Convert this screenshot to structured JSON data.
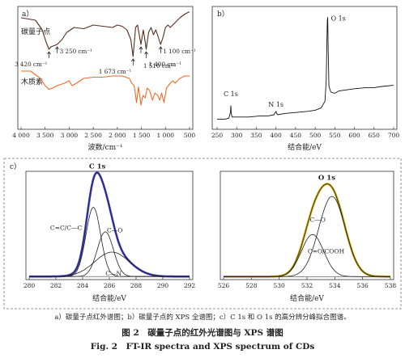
{
  "chart_data": [
    {
      "type": "line",
      "panel_label": "a）",
      "xlabel": "波数/cm⁻¹",
      "x_ticks": [
        4000,
        3500,
        3000,
        2500,
        2000,
        1500,
        1000,
        500
      ],
      "xlim": [
        4000,
        500
      ],
      "series": [
        {
          "name": "碳量子点",
          "color": "#5a2d1c",
          "x": [
            4000,
            3700,
            3560,
            3480,
            3420,
            3380,
            3250,
            3150,
            3050,
            2900,
            2700,
            2500,
            2300,
            2100,
            2000,
            1900,
            1800,
            1720,
            1673,
            1620,
            1580,
            1510,
            1460,
            1420,
            1400,
            1350,
            1300,
            1250,
            1200,
            1150,
            1100,
            1050,
            1000,
            950,
            900,
            850,
            800,
            700,
            600,
            500
          ],
          "y": [
            0.92,
            0.9,
            0.82,
            0.72,
            0.66,
            0.68,
            0.7,
            0.74,
            0.8,
            0.84,
            0.83,
            0.86,
            0.85,
            0.84,
            0.86,
            0.85,
            0.82,
            0.74,
            0.6,
            0.84,
            0.86,
            0.7,
            0.82,
            0.72,
            0.66,
            0.8,
            0.84,
            0.78,
            0.82,
            0.76,
            0.7,
            0.76,
            0.84,
            0.86,
            0.84,
            0.86,
            0.88,
            0.92,
            0.95,
            0.97
          ]
        },
        {
          "name": "木质素",
          "color": "#ef6a2a",
          "x": [
            4000,
            3800,
            3600,
            3500,
            3420,
            3350,
            3250,
            3100,
            3000,
            2940,
            2850,
            2700,
            2500,
            2300,
            2100,
            1900,
            1750,
            1700,
            1650,
            1600,
            1560,
            1510,
            1470,
            1420,
            1380,
            1330,
            1270,
            1220,
            1160,
            1120,
            1080,
            1030,
            980,
            900,
            850,
            800,
            700,
            600,
            500
          ],
          "y": [
            0.48,
            0.48,
            0.42,
            0.36,
            0.33,
            0.34,
            0.36,
            0.38,
            0.4,
            0.36,
            0.38,
            0.42,
            0.43,
            0.43,
            0.44,
            0.44,
            0.42,
            0.38,
            0.36,
            0.22,
            0.35,
            0.2,
            0.28,
            0.26,
            0.34,
            0.32,
            0.24,
            0.3,
            0.28,
            0.24,
            0.3,
            0.22,
            0.34,
            0.38,
            0.4,
            0.38,
            0.42,
            0.44,
            0.44
          ]
        }
      ],
      "annotations": [
        {
          "text": "3 420 cm⁻¹",
          "x": 3420
        },
        {
          "text": "3 250 cm⁻¹",
          "x": 3250
        },
        {
          "text": "1 673 cm⁻¹",
          "x": 1673
        },
        {
          "text": "1 510 cm⁻¹",
          "x": 1510
        },
        {
          "text": "1 400 cm⁻¹",
          "x": 1400
        },
        {
          "text": "1 100 cm⁻¹",
          "x": 1100
        }
      ]
    },
    {
      "type": "line",
      "panel_label": "b）",
      "xlabel": "结合能/eV",
      "x_ticks": [
        250,
        300,
        350,
        400,
        450,
        500,
        550,
        600,
        650,
        700
      ],
      "xlim": [
        250,
        700
      ],
      "series": [
        {
          "color": "#111",
          "x": [
            250,
            270,
            280,
            284,
            285,
            286,
            288,
            300,
            330,
            360,
            380,
            395,
            400,
            402,
            405,
            420,
            450,
            480,
            500,
            515,
            525,
            528,
            531,
            532,
            533,
            535,
            540,
            550,
            560,
            580,
            600,
            630,
            650,
            670,
            700
          ],
          "y": [
            0.06,
            0.06,
            0.07,
            0.12,
            0.18,
            0.12,
            0.08,
            0.08,
            0.08,
            0.09,
            0.09,
            0.1,
            0.13,
            0.11,
            0.1,
            0.11,
            0.12,
            0.13,
            0.14,
            0.16,
            0.22,
            0.4,
            0.93,
            0.96,
            0.7,
            0.35,
            0.3,
            0.29,
            0.31,
            0.32,
            0.33,
            0.34,
            0.34,
            0.35,
            0.36
          ]
        }
      ],
      "annotations": [
        {
          "text": "C 1s",
          "x": 285
        },
        {
          "text": "N 1s",
          "x": 400
        },
        {
          "text": "O 1s",
          "x": 532
        }
      ]
    },
    {
      "type": "line",
      "panel_label": "c）",
      "xlabel": "结合能/eV",
      "x_ticks": [
        280,
        282,
        284,
        286,
        288,
        290,
        292
      ],
      "xlim": [
        280,
        292
      ],
      "title": "C 1s",
      "peaks": [
        {
          "label": "C=C/C—C",
          "center": 284.8,
          "height": 0.68,
          "width": 0.55
        },
        {
          "label": "C—O",
          "center": 285.7,
          "height": 0.44,
          "width": 0.6
        },
        {
          "label": "C—N",
          "center": 286.2,
          "height": 0.24,
          "width": 1.3
        }
      ],
      "envelope_color": "#3b3bd0"
    },
    {
      "type": "line",
      "panel_label": "",
      "xlabel": "结合能/eV",
      "x_ticks": [
        526,
        528,
        530,
        532,
        534,
        536,
        538
      ],
      "xlim": [
        526,
        538
      ],
      "title": "O 1s",
      "peaks": [
        {
          "label": "C—O",
          "center": 533.8,
          "height": 0.8,
          "width": 0.95
        },
        {
          "label": "C=O/COOH",
          "center": 532.4,
          "height": 0.42,
          "width": 0.8
        }
      ],
      "envelope_color": "#c8a500"
    }
  ],
  "captions": {
    "sub": "a）碳量子点红外谱图；b）碳量子点的 XPS 全谱图；c）C 1s 和 O 1s 的高分辨分峰拟合图谱。",
    "fig_cn": "图 2　碳量子点的红外光谱图与 XPS 谱图",
    "fig_en": "Fig. 2　FT-IR spectra and XPS spectrum of CDs"
  }
}
